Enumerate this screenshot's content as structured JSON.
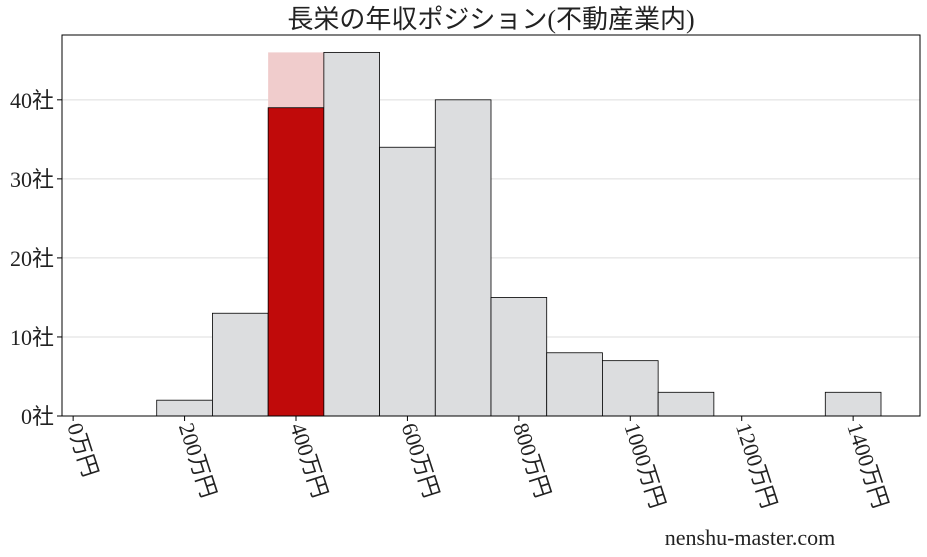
{
  "chart_data": {
    "type": "histogram",
    "title": "長栄の年収ポジション(不動産業内)",
    "watermark": "nenshu-master.com",
    "bins": [
      150,
      250,
      350,
      450,
      550,
      650,
      750,
      850,
      950,
      1050,
      1150,
      1250,
      1350,
      1450
    ],
    "values": [
      2,
      13,
      39,
      46,
      34,
      40,
      15,
      8,
      7,
      3,
      0,
      0,
      3
    ],
    "color": "#dcdddf",
    "edge_color": "#000000",
    "highlight_bins": [
      350,
      450
    ],
    "highlight_value": 46,
    "highlight_color": "#f0cccc",
    "highlight_bar_color": "#c00a0a",
    "xlim": [
      -20,
      1520
    ],
    "ylim": [
      0,
      48.2
    ],
    "xticks": [
      {
        "value": 0,
        "label": "0万円"
      },
      {
        "value": 200,
        "label": "200万円"
      },
      {
        "value": 400,
        "label": "400万円"
      },
      {
        "value": 600,
        "label": "600万円"
      },
      {
        "value": 800,
        "label": "800万円"
      },
      {
        "value": 1000,
        "label": "1000万円"
      },
      {
        "value": 1200,
        "label": "1200万円"
      },
      {
        "value": 1400,
        "label": "1400万円"
      }
    ],
    "yticks": [
      {
        "value": 0,
        "label": "0社"
      },
      {
        "value": 10,
        "label": "10社"
      },
      {
        "value": 20,
        "label": "20社"
      },
      {
        "value": 30,
        "label": "30社"
      },
      {
        "value": 40,
        "label": "40社"
      }
    ],
    "grid": true
  }
}
